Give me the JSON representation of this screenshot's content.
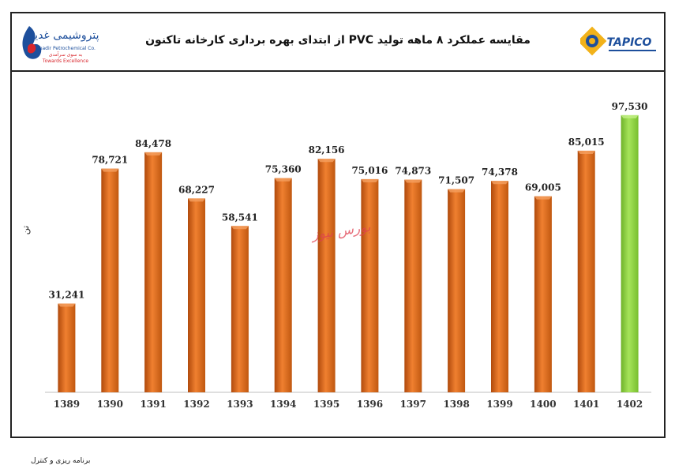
{
  "header": {
    "title": "مقایسه عملکرد ۸ ماهه تولید PVC از ابتدای بهره برداری کارخانه تاکنون",
    "left_logo": {
      "script": "پتروشیمی غدیر",
      "name": "Ghadir Petrochemical Co.",
      "slogan_fa": "به سوی سرآمدی",
      "slogan_en": "Towards Excellence",
      "color": "#1d4f9c"
    },
    "right_logo": {
      "name": "TAPICO",
      "color": "#1d4f9c"
    }
  },
  "watermark": "بورس نیوز",
  "footer": {
    "note": "برنامه ریزی و کنترل"
  },
  "chart_data": {
    "type": "bar",
    "title": "مقایسه عملکرد ۸ ماهه تولید PVC از ابتدای بهره برداری کارخانه تاکنون",
    "ylabel": "تن",
    "xlabel": "",
    "categories": [
      "1389",
      "1390",
      "1391",
      "1392",
      "1393",
      "1394",
      "1395",
      "1396",
      "1397",
      "1398",
      "1399",
      "1400",
      "1401",
      "1402"
    ],
    "values": [
      31241,
      78721,
      84478,
      68227,
      58541,
      75360,
      82156,
      75016,
      74873,
      71507,
      74378,
      69005,
      85015,
      97530
    ],
    "data_labels": [
      "31,241",
      "78,721",
      "84,478",
      "68,227",
      "58,541",
      "75,360",
      "82,156",
      "75,016",
      "74,873",
      "71,507",
      "74,378",
      "69,005",
      "85,015",
      "97,530"
    ],
    "ylim": [
      0,
      110000
    ],
    "grid": false,
    "legend": "none",
    "colors": {
      "default": "#e06a1b",
      "highlight": "#8cd43a"
    },
    "highlight_index": 13
  }
}
